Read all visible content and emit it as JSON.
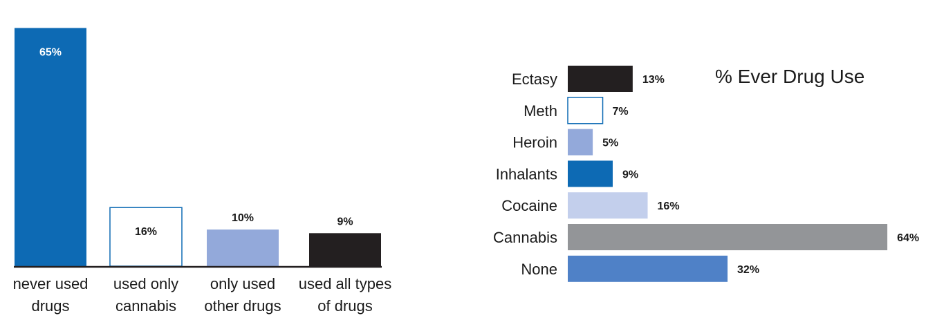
{
  "chart_data": [
    {
      "type": "bar",
      "orientation": "vertical",
      "categories": [
        [
          "never used",
          "drugs"
        ],
        [
          "used only",
          "cannabis"
        ],
        [
          "only used",
          "other drugs"
        ],
        [
          "used all types",
          "of drugs"
        ]
      ],
      "values": [
        65,
        16,
        10,
        9
      ],
      "value_labels": [
        "65%",
        "16%",
        "10%",
        "9%"
      ],
      "colors": [
        "#0d6ab4",
        "#ffffff",
        "#93a9da",
        "#231f20"
      ],
      "outline": [
        "none",
        "#0d6ab4",
        "none",
        "none"
      ],
      "label_colors": [
        "#ffffff",
        "#1a1a1a",
        "#1a1a1a",
        "#ffffff"
      ],
      "title": "",
      "xlabel": "",
      "ylabel": ""
    },
    {
      "type": "bar",
      "orientation": "horizontal",
      "title": "% Ever Drug Use",
      "categories": [
        "Ectasy",
        "Meth",
        "Heroin",
        "Inhalants",
        "Cocaine",
        "Cannabis",
        "None"
      ],
      "values": [
        13,
        7,
        5,
        9,
        16,
        64,
        32
      ],
      "value_labels": [
        "13%",
        "7%",
        "5%",
        "9%",
        "16%",
        "64%",
        "32%"
      ],
      "colors": [
        "#231f20",
        "#ffffff",
        "#93a9da",
        "#0d6ab4",
        "#c3cfec",
        "#939598",
        "#4f81c7"
      ],
      "outline": [
        "none",
        "#0d6ab4",
        "none",
        "none",
        "none",
        "none",
        "none"
      ],
      "xlabel": "",
      "ylabel": ""
    }
  ]
}
